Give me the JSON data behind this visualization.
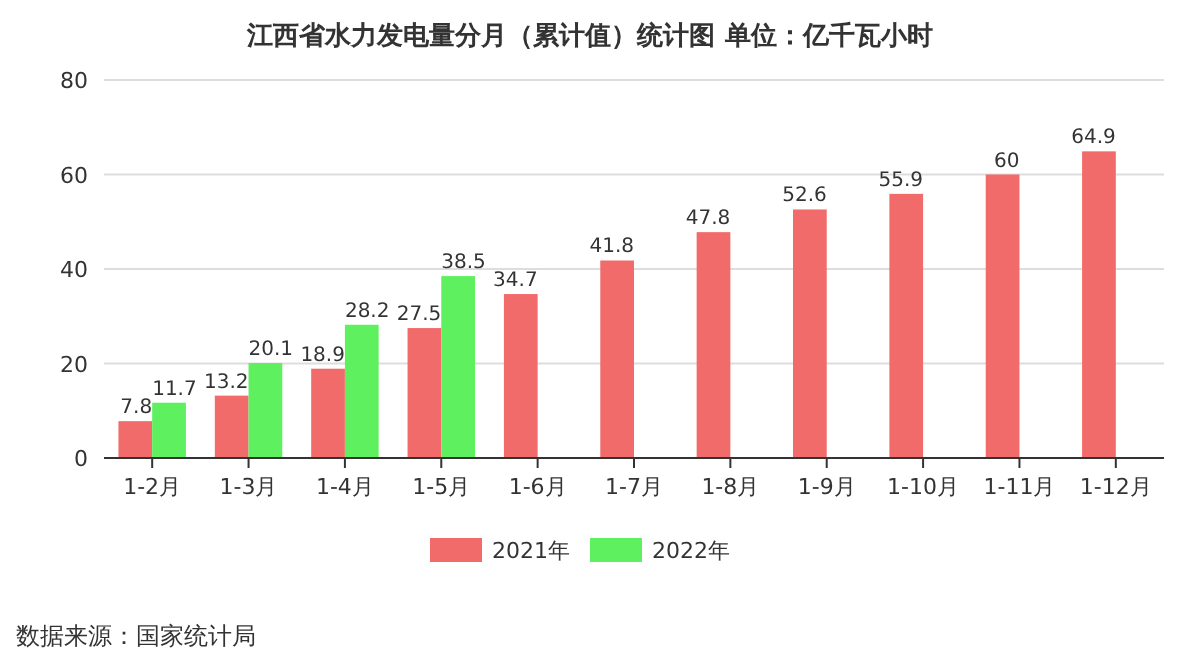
{
  "chart_data": {
    "type": "bar",
    "title": "江西省水力发电量分月（累计值）统计图 单位：亿千瓦小时",
    "categories": [
      "1-2月",
      "1-3月",
      "1-4月",
      "1-5月",
      "1-6月",
      "1-7月",
      "1-8月",
      "1-9月",
      "1-10月",
      "1-11月",
      "1-12月"
    ],
    "series": [
      {
        "name": "2021年",
        "color": "#f26b6b",
        "values": [
          7.8,
          13.2,
          18.9,
          27.5,
          34.7,
          41.8,
          47.8,
          52.6,
          55.9,
          60,
          64.9
        ]
      },
      {
        "name": "2022年",
        "color": "#5ef05e",
        "values": [
          11.7,
          20.1,
          28.2,
          38.5,
          null,
          null,
          null,
          null,
          null,
          null,
          null
        ]
      }
    ],
    "ylim": [
      0,
      80
    ],
    "yticks": [
      0,
      20,
      40,
      60,
      80
    ],
    "grid": "y",
    "legend": "bottom",
    "data_labels": true,
    "annotations": [
      "数据来源：国家统计局"
    ]
  }
}
